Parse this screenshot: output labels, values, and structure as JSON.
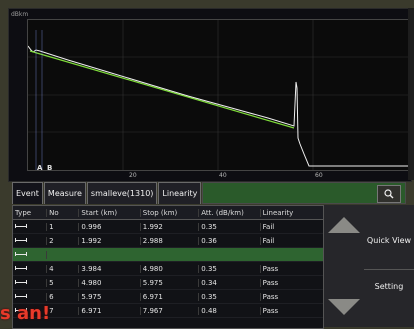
{
  "trace": {
    "y_unit": "dBkm",
    "x_ticks": [
      "20",
      "40",
      "60"
    ],
    "markers": [
      "A",
      "B"
    ]
  },
  "tabs": [
    {
      "label": "Event"
    },
    {
      "label": "Measure"
    },
    {
      "label": "smalleve(1310)"
    },
    {
      "label": "Linearity"
    }
  ],
  "table": {
    "headers": [
      "Type",
      "No",
      "Start (km)",
      "Stop (km)",
      "Att. (dB/km)",
      "Linearity"
    ],
    "rows": [
      {
        "no": "1",
        "start": "0.996",
        "stop": "1.992",
        "att": "0.35",
        "lin": "Fail"
      },
      {
        "no": "2",
        "start": "1.992",
        "stop": "2.988",
        "att": "0.36",
        "lin": "Fail"
      },
      {
        "no": "",
        "start": "",
        "stop": "",
        "att": "",
        "lin": ""
      },
      {
        "no": "4",
        "start": "3.984",
        "stop": "4.980",
        "att": "0.35",
        "lin": "Pass"
      },
      {
        "no": "5",
        "start": "4.980",
        "stop": "5.975",
        "att": "0.34",
        "lin": "Pass"
      },
      {
        "no": "6",
        "start": "5.975",
        "stop": "6.971",
        "att": "0.35",
        "lin": "Pass"
      },
      {
        "no": "7",
        "start": "6.971",
        "stop": "7.967",
        "att": "0.48",
        "lin": "Pass"
      }
    ]
  },
  "controls": {
    "quick_view": "Quick View",
    "setting": "Setting"
  },
  "overlay": "s an!",
  "colors": {
    "trace_line": "#f0f0f0",
    "fit_line": "#7fdc3a",
    "selected_row": "#2e6430",
    "overlay_text": "#e83a2a"
  }
}
